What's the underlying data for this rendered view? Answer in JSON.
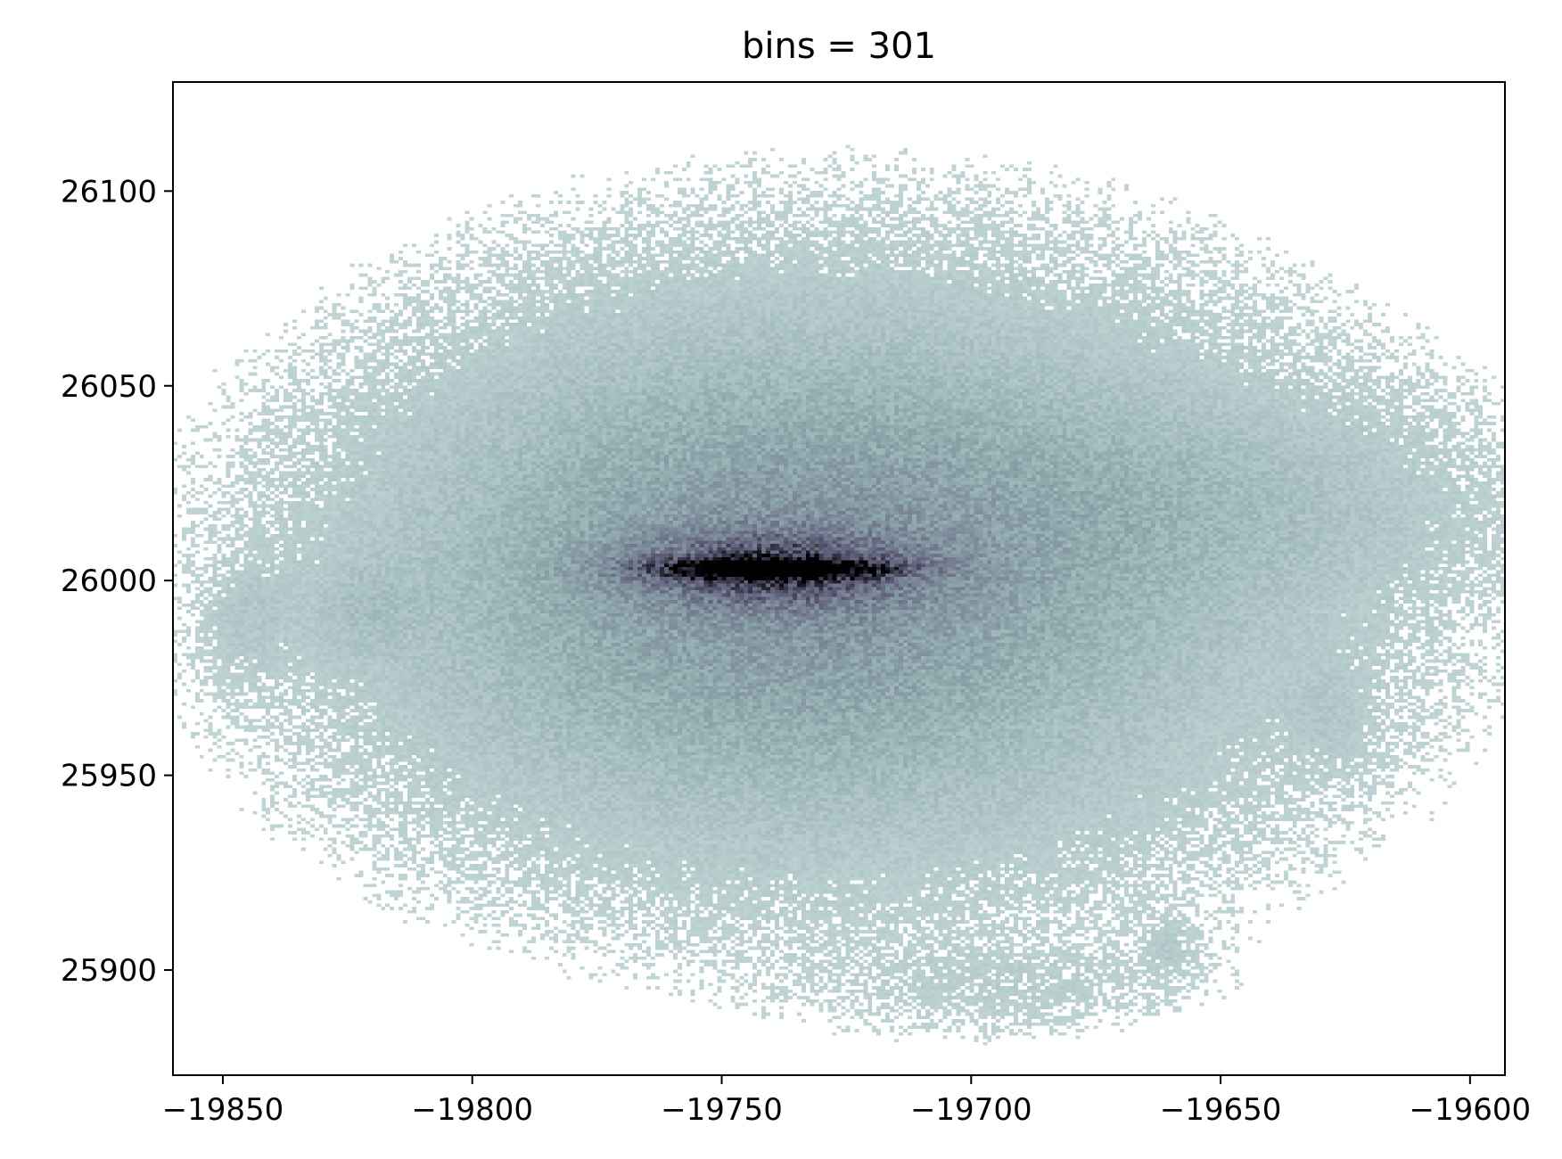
{
  "chart_data": {
    "type": "heatmap",
    "title": "bins = 301",
    "xlabel": "",
    "ylabel": "",
    "xlim": [
      -19860,
      -19593
    ],
    "ylim": [
      25873,
      26128
    ],
    "x_ticks": [
      -19850,
      -19800,
      -19750,
      -19700,
      -19650,
      -19600
    ],
    "x_tick_labels": [
      "−19850",
      "−19800",
      "−19750",
      "−19700",
      "−19650",
      "−19600"
    ],
    "y_ticks": [
      25900,
      25950,
      26000,
      26050,
      26100
    ],
    "y_tick_labels": [
      "25900",
      "25950",
      "26000",
      "26050",
      "26100"
    ],
    "bins": 301,
    "colormap": "bone_r",
    "colors": {
      "low": "#cfe2e0",
      "mid": "#8fa9ad",
      "high": "#5f5d7a",
      "peak": "#000000"
    },
    "grid": false,
    "legend": "none",
    "density_blobs": [
      {
        "x": -19740,
        "y": 26003,
        "sx": 14,
        "sy": 1.6,
        "w": 1.0
      },
      {
        "x": -19740,
        "y": 26003,
        "sx": 18,
        "sy": 6,
        "w": 0.45
      },
      {
        "x": -19735,
        "y": 26002,
        "sx": 45,
        "sy": 35,
        "w": 0.22
      },
      {
        "x": -19725,
        "y": 26000,
        "sx": 95,
        "sy": 75,
        "w": 0.13
      },
      {
        "x": -19650,
        "y": 26020,
        "sx": 40,
        "sy": 18,
        "w": 0.06
      },
      {
        "x": -19845,
        "y": 25990,
        "sx": 6,
        "sy": 10,
        "w": 0.05
      },
      {
        "x": -19822,
        "y": 25992,
        "sx": 7,
        "sy": 8,
        "w": 0.05
      },
      {
        "x": -19690,
        "y": 25895,
        "sx": 25,
        "sy": 8,
        "w": 0.04
      },
      {
        "x": -19660,
        "y": 25906,
        "sx": 4,
        "sy": 5,
        "w": 0.05
      },
      {
        "x": -19628,
        "y": 25965,
        "sx": 6,
        "sy": 10,
        "w": 0.04
      }
    ]
  }
}
